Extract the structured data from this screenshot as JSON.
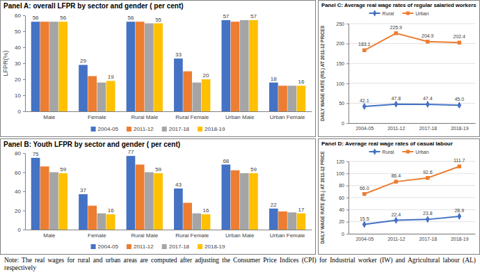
{
  "chart_data": [
    {
      "type": "bar",
      "title": "Panel A: overall LFPR by sector and gender ( per cent)",
      "y_label": "LFPR(%)",
      "categories": [
        "Male",
        "Female",
        "Rural Male",
        "Rural Female",
        "Urban Male",
        "Urban Female"
      ],
      "series": [
        {
          "name": "2004-05",
          "color": "#4472c4",
          "values": [
            56,
            29,
            56,
            33,
            57,
            18
          ],
          "data_labels": true
        },
        {
          "name": "2011-12",
          "color": "#ed7d31",
          "values": [
            56,
            22,
            56,
            25,
            56,
            16
          ],
          "data_labels": false
        },
        {
          "name": "2017-18",
          "color": "#a5a5a5",
          "values": [
            56,
            18,
            55,
            18,
            57,
            16
          ],
          "data_labels": false
        },
        {
          "name": "2018-19",
          "color": "#ffc000",
          "values": [
            56,
            19,
            55,
            20,
            57,
            16
          ],
          "data_labels": true
        }
      ],
      "ylim": [
        0,
        60
      ],
      "yticks": [
        0,
        10,
        20,
        30,
        40,
        50,
        60
      ],
      "grid": false,
      "legend": "bottom"
    },
    {
      "type": "bar",
      "title": "Panel B: Youth LFPR by sector and gender ( per cent)",
      "categories": [
        "Male",
        "Female",
        "Rural Male",
        "Rural Female",
        "Urban Male",
        "Urban Female"
      ],
      "series": [
        {
          "name": "2004-05",
          "color": "#4472c4",
          "values": [
            75,
            37,
            77,
            43,
            68,
            22
          ],
          "data_labels": true
        },
        {
          "name": "2011-12",
          "color": "#ed7d31",
          "values": [
            66,
            25,
            68,
            28,
            62,
            19
          ],
          "data_labels": false
        },
        {
          "name": "2017-18",
          "color": "#a5a5a5",
          "values": [
            60,
            17,
            60,
            17,
            59,
            18
          ],
          "data_labels": false
        },
        {
          "name": "2018-19",
          "color": "#ffc000",
          "values": [
            59,
            16,
            59,
            16,
            59,
            17
          ],
          "data_labels": true
        }
      ],
      "ylim": [
        0,
        80
      ],
      "yticks": [
        0,
        20,
        40,
        60,
        80
      ],
      "grid": false,
      "legend": "bottom"
    },
    {
      "type": "line",
      "title": "Panel C: Average real wage rates of regular salaried workers",
      "y_label": "DAILY WAGE RATE (RS.) AT 2011-12 PRICES",
      "categories": [
        "2004-05",
        "2011-12",
        "2017-18",
        "2018-19"
      ],
      "series": [
        {
          "name": "Rural",
          "color": "#4472c4",
          "marker": "diamond",
          "values": [
            42.1,
            47.8,
            47.4,
            45.0
          ],
          "value_labels": [
            "42.1",
            "47.8",
            "47.4",
            "45.0"
          ]
        },
        {
          "name": "Urban",
          "color": "#ed7d31",
          "marker": "square",
          "values": [
            183.1,
            225.9,
            204.9,
            202.4
          ],
          "value_labels": [
            "183.1",
            "225.9",
            "204.9",
            "202.4"
          ]
        }
      ],
      "ylim": [
        0,
        250
      ],
      "yticks": [
        0,
        50,
        100,
        150,
        200,
        250
      ],
      "grid": true,
      "data_labels": true,
      "legend": "top"
    },
    {
      "type": "line",
      "title": "Panel D: Average real wage rates of casual labour",
      "y_label": "DAILY WAGE RATE (RS.) AT 2011-12 PRICE",
      "categories": [
        "2004-05",
        "2011-12",
        "2017-18",
        "2018-19"
      ],
      "series": [
        {
          "name": "Rural",
          "color": "#4472c4",
          "marker": "diamond",
          "values": [
            15.5,
            22.4,
            23.8,
            28.9
          ],
          "value_labels": [
            "15.5",
            "22.4",
            "23.8",
            "28.9"
          ]
        },
        {
          "name": "Urban",
          "color": "#ed7d31",
          "marker": "square",
          "values": [
            66.0,
            86.4,
            92.6,
            111.7
          ],
          "value_labels": [
            "66.0",
            "86.4",
            "92.6",
            "111.7"
          ]
        }
      ],
      "ylim": [
        0,
        120
      ],
      "yticks": [
        0,
        20,
        40,
        60,
        80,
        100,
        120
      ],
      "grid": true,
      "data_labels": true,
      "legend": "top"
    }
  ],
  "note": "Note: The real wages for rural and urban areas are computed after adjusting the Consumer Price Indices (CPI) for Industrial worker (IW) and Agricultural labour (AL) respectively"
}
